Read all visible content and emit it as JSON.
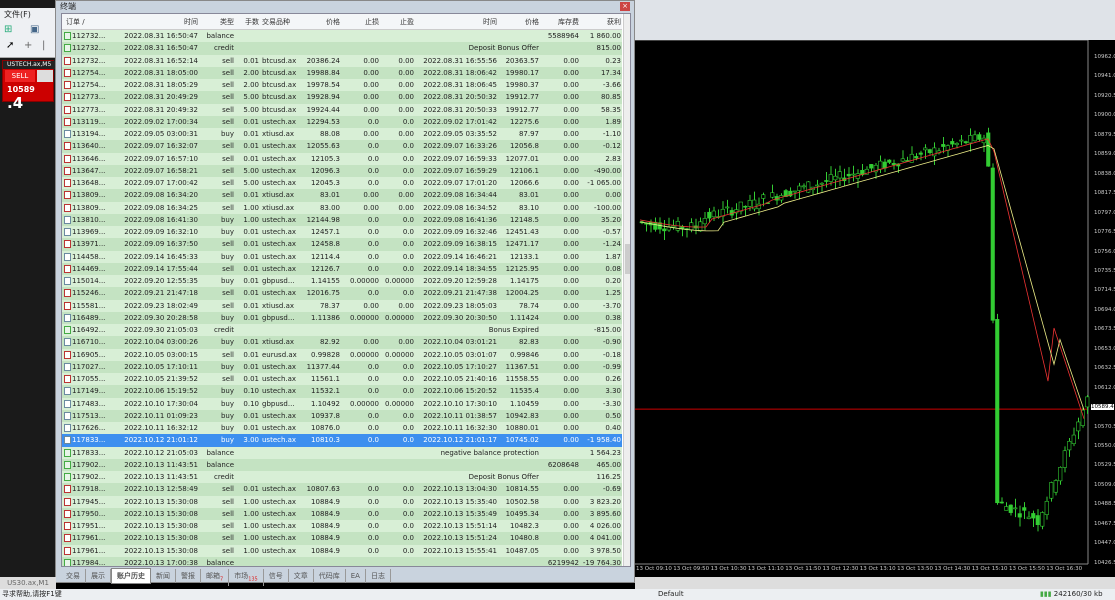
{
  "menu": {
    "file": "文件(F)"
  },
  "oneclick": {
    "symbol": "USTECH.ax,M5",
    "sell_label": "SELL",
    "price_main": "10589",
    "price_big": ".4",
    "color": "#cc0000"
  },
  "chart": {
    "price_labels": [
      "10962.0",
      "10941.0",
      "10920.5",
      "10900.0",
      "10879.5",
      "10859.0",
      "10838.0",
      "10817.5",
      "10797.0",
      "10776.5",
      "10756.0",
      "10735.5",
      "10714.5",
      "10694.0",
      "10673.5",
      "10653.0",
      "10632.5",
      "10612.0",
      "10589.4",
      "10570.5",
      "10550.0",
      "10529.5",
      "10509.0",
      "10488.5",
      "10467.5",
      "10447.0",
      "10426.5"
    ],
    "current_price": "10589.4",
    "time_labels": [
      "12 Oct 2022",
      "13 Oct 09:10",
      "13 Oct 09:50",
      "13 Oct 10:30",
      "13 Oct 11:10",
      "13 Oct 11:50",
      "13 Oct 12:30",
      "13 Oct 13:10",
      "13 Oct 13:50",
      "13 Oct 14:30",
      "13 Oct 15:10",
      "13 Oct 15:50",
      "13 Oct 16:30"
    ],
    "bull_color": "#33cc33",
    "current_line_color": "#cc0000"
  },
  "terminal": {
    "title": "终端",
    "headers": [
      "订单 /",
      "时间",
      "类型",
      "手数",
      "交易品种",
      "价格",
      "止损",
      "止盈",
      "时间",
      "价格",
      "库存费",
      "获利"
    ],
    "rows": [
      [
        "112732...",
        "2022.08.31 16:50:47",
        "balance",
        "",
        "",
        "",
        "",
        "",
        "",
        "",
        "5588964",
        "1 860.00"
      ],
      [
        "112732...",
        "2022.08.31 16:50:47",
        "credit",
        "",
        "",
        "",
        "",
        "",
        "",
        "Deposit Bonus Offer",
        "",
        "815.00"
      ],
      [
        "112732...",
        "2022.08.31 16:52:14",
        "sell",
        "0.01",
        "btcusd.ax",
        "20386.24",
        "0.00",
        "0.00",
        "2022.08.31 16:55:56",
        "20363.57",
        "0.00",
        "0.23"
      ],
      [
        "112754...",
        "2022.08.31 18:05:00",
        "sell",
        "2.00",
        "btcusd.ax",
        "19988.84",
        "0.00",
        "0.00",
        "2022.08.31 18:06:42",
        "19980.17",
        "0.00",
        "17.34"
      ],
      [
        "112754...",
        "2022.08.31 18:05:29",
        "sell",
        "2.00",
        "btcusd.ax",
        "19978.54",
        "0.00",
        "0.00",
        "2022.08.31 18:06:45",
        "19980.37",
        "0.00",
        "-3.66"
      ],
      [
        "112773...",
        "2022.08.31 20:49:29",
        "sell",
        "5.00",
        "btcusd.ax",
        "19928.94",
        "0.00",
        "0.00",
        "2022.08.31 20:50:32",
        "19912.77",
        "0.00",
        "80.85"
      ],
      [
        "112773...",
        "2022.08.31 20:49:32",
        "sell",
        "5.00",
        "btcusd.ax",
        "19924.44",
        "0.00",
        "0.00",
        "2022.08.31 20:50:33",
        "19912.77",
        "0.00",
        "58.35"
      ],
      [
        "113119...",
        "2022.09.02 17:00:34",
        "sell",
        "0.01",
        "ustech.ax",
        "12294.53",
        "0.0",
        "0.0",
        "2022.09.02 17:01:42",
        "12275.6",
        "0.00",
        "1.89"
      ],
      [
        "113194...",
        "2022.09.05 03:00:31",
        "buy",
        "0.01",
        "xtiusd.ax",
        "88.08",
        "0.00",
        "0.00",
        "2022.09.05 03:35:52",
        "87.97",
        "0.00",
        "-1.10"
      ],
      [
        "113640...",
        "2022.09.07 16:32:07",
        "sell",
        "0.01",
        "ustech.ax",
        "12055.63",
        "0.0",
        "0.0",
        "2022.09.07 16:33:26",
        "12056.8",
        "0.00",
        "-0.12"
      ],
      [
        "113646...",
        "2022.09.07 16:57:10",
        "sell",
        "0.01",
        "ustech.ax",
        "12105.3",
        "0.0",
        "0.0",
        "2022.09.07 16:59:33",
        "12077.01",
        "0.00",
        "2.83"
      ],
      [
        "113647...",
        "2022.09.07 16:58:21",
        "sell",
        "5.00",
        "ustech.ax",
        "12096.3",
        "0.0",
        "0.0",
        "2022.09.07 16:59:29",
        "12106.1",
        "0.00",
        "-490.00"
      ],
      [
        "113648...",
        "2022.09.07 17:00:42",
        "sell",
        "5.00",
        "ustech.ax",
        "12045.3",
        "0.0",
        "0.0",
        "2022.09.07 17:01:20",
        "12066.6",
        "0.00",
        "-1 065.00"
      ],
      [
        "113809...",
        "2022.09.08 16:34:20",
        "sell",
        "0.01",
        "xtiusd.ax",
        "83.01",
        "0.00",
        "0.00",
        "2022.09.08 16:34:44",
        "83.01",
        "0.00",
        "0.00"
      ],
      [
        "113809...",
        "2022.09.08 16:34:25",
        "sell",
        "1.00",
        "xtiusd.ax",
        "83.00",
        "0.00",
        "0.00",
        "2022.09.08 16:34:52",
        "83.10",
        "0.00",
        "-100.00"
      ],
      [
        "113810...",
        "2022.09.08 16:41:30",
        "buy",
        "1.00",
        "ustech.ax",
        "12144.98",
        "0.0",
        "0.0",
        "2022.09.08 16:41:36",
        "12148.5",
        "0.00",
        "35.20"
      ],
      [
        "113969...",
        "2022.09.09 16:32:10",
        "buy",
        "0.01",
        "ustech.ax",
        "12457.1",
        "0.0",
        "0.0",
        "2022.09.09 16:32:46",
        "12451.43",
        "0.00",
        "-0.57"
      ],
      [
        "113971...",
        "2022.09.09 16:37:50",
        "sell",
        "0.01",
        "ustech.ax",
        "12458.8",
        "0.0",
        "0.0",
        "2022.09.09 16:38:15",
        "12471.17",
        "0.00",
        "-1.24"
      ],
      [
        "114458...",
        "2022.09.14 16:45:33",
        "buy",
        "0.01",
        "ustech.ax",
        "12114.4",
        "0.0",
        "0.0",
        "2022.09.14 16:46:21",
        "12133.1",
        "0.00",
        "1.87"
      ],
      [
        "114469...",
        "2022.09.14 17:55:44",
        "sell",
        "0.01",
        "ustech.ax",
        "12126.7",
        "0.0",
        "0.0",
        "2022.09.14 18:34:55",
        "12125.95",
        "0.00",
        "0.08"
      ],
      [
        "115014...",
        "2022.09.20 12:55:35",
        "buy",
        "0.01",
        "gbpusd...",
        "1.14155",
        "0.00000",
        "0.00000",
        "2022.09.20 12:59:28",
        "1.14175",
        "0.00",
        "0.20"
      ],
      [
        "115246...",
        "2022.09.21 21:47:18",
        "sell",
        "0.01",
        "ustech.ax",
        "12016.75",
        "0.0",
        "0.0",
        "2022.09.21 21:47:38",
        "12004.25",
        "0.00",
        "1.25"
      ],
      [
        "115581...",
        "2022.09.23 18:02:49",
        "sell",
        "0.01",
        "xtiusd.ax",
        "78.37",
        "0.00",
        "0.00",
        "2022.09.23 18:05:03",
        "78.74",
        "0.00",
        "-3.70"
      ],
      [
        "116489...",
        "2022.09.30 20:28:58",
        "buy",
        "0.01",
        "gbpusd...",
        "1.11386",
        "0.00000",
        "0.00000",
        "2022.09.30 20:30:50",
        "1.11424",
        "0.00",
        "0.38"
      ],
      [
        "116492...",
        "2022.09.30 21:05:03",
        "credit",
        "",
        "",
        "",
        "",
        "",
        "",
        "Bonus Expired",
        "",
        "-815.00"
      ],
      [
        "116710...",
        "2022.10.04 03:00:26",
        "buy",
        "0.01",
        "xtiusd.ax",
        "82.92",
        "0.00",
        "0.00",
        "2022.10.04 03:01:21",
        "82.83",
        "0.00",
        "-0.90"
      ],
      [
        "116905...",
        "2022.10.05 03:00:15",
        "sell",
        "0.01",
        "eurusd.ax",
        "0.99828",
        "0.00000",
        "0.00000",
        "2022.10.05 03:01:07",
        "0.99846",
        "0.00",
        "-0.18"
      ],
      [
        "117027...",
        "2022.10.05 17:10:11",
        "buy",
        "0.01",
        "ustech.ax",
        "11377.44",
        "0.0",
        "0.0",
        "2022.10.05 17:10:27",
        "11367.51",
        "0.00",
        "-0.99"
      ],
      [
        "117055...",
        "2022.10.05 21:39:52",
        "sell",
        "0.01",
        "ustech.ax",
        "11561.1",
        "0.0",
        "0.0",
        "2022.10.05 21:40:16",
        "11558.55",
        "0.00",
        "0.26"
      ],
      [
        "117149...",
        "2022.10.06 15:19:52",
        "buy",
        "0.10",
        "ustech.ax",
        "11532.1",
        "0.0",
        "0.0",
        "2022.10.06 15:20:52",
        "11535.4",
        "0.00",
        "3.30"
      ],
      [
        "117483...",
        "2022.10.10 17:30:04",
        "buy",
        "0.10",
        "gbpusd...",
        "1.10492",
        "0.00000",
        "0.00000",
        "2022.10.10 17:30:10",
        "1.10459",
        "0.00",
        "-3.30"
      ],
      [
        "117513...",
        "2022.10.11 01:09:23",
        "buy",
        "0.01",
        "ustech.ax",
        "10937.8",
        "0.0",
        "0.0",
        "2022.10.11 01:38:57",
        "10942.83",
        "0.00",
        "0.50"
      ],
      [
        "117626...",
        "2022.10.11 16:32:12",
        "buy",
        "0.01",
        "ustech.ax",
        "10876.0",
        "0.0",
        "0.0",
        "2022.10.11 16:32:30",
        "10880.01",
        "0.00",
        "0.40"
      ],
      [
        "117833...",
        "2022.10.12 21:01:12",
        "buy",
        "3.00",
        "ustech.ax",
        "10810.3",
        "0.0",
        "0.0",
        "2022.10.12 21:01:17",
        "10745.02",
        "0.00",
        "-1 958.40"
      ],
      [
        "117833...",
        "2022.10.12 21:05:03",
        "balance",
        "",
        "",
        "",
        "",
        "",
        "",
        "negative balance protection",
        "",
        "1 564.23"
      ],
      [
        "117902...",
        "2022.10.13 11:43:51",
        "balance",
        "",
        "",
        "",
        "",
        "",
        "",
        "",
        "6208648",
        "465.00"
      ],
      [
        "117902...",
        "2022.10.13 11:43:51",
        "credit",
        "",
        "",
        "",
        "",
        "",
        "",
        "Deposit Bonus Offer",
        "",
        "116.25"
      ],
      [
        "117918...",
        "2022.10.13 12:58:49",
        "sell",
        "0.01",
        "ustech.ax",
        "10807.63",
        "0.0",
        "0.0",
        "2022.10.13 13:04:30",
        "10814.55",
        "0.00",
        "-0.69"
      ],
      [
        "117945...",
        "2022.10.13 15:30:08",
        "sell",
        "1.00",
        "ustech.ax",
        "10884.9",
        "0.0",
        "0.0",
        "2022.10.13 15:35:40",
        "10502.58",
        "0.00",
        "3 823.20"
      ],
      [
        "117950...",
        "2022.10.13 15:30:08",
        "sell",
        "1.00",
        "ustech.ax",
        "10884.9",
        "0.0",
        "0.0",
        "2022.10.13 15:35:49",
        "10495.34",
        "0.00",
        "3 895.60"
      ],
      [
        "117951...",
        "2022.10.13 15:30:08",
        "sell",
        "1.00",
        "ustech.ax",
        "10884.9",
        "0.0",
        "0.0",
        "2022.10.13 15:51:14",
        "10482.3",
        "0.00",
        "4 026.00"
      ],
      [
        "117961...",
        "2022.10.13 15:30:08",
        "sell",
        "1.00",
        "ustech.ax",
        "10884.9",
        "0.0",
        "0.0",
        "2022.10.13 15:51:24",
        "10480.8",
        "0.00",
        "4 041.00"
      ],
      [
        "117961...",
        "2022.10.13 15:30:08",
        "sell",
        "1.00",
        "ustech.ax",
        "10884.9",
        "0.0",
        "0.0",
        "2022.10.13 15:55:41",
        "10487.05",
        "0.00",
        "3 978.50"
      ],
      [
        "117984...",
        "2022.10.13 17:00:38",
        "balance",
        "",
        "",
        "",
        "",
        "",
        "",
        "",
        "6219942",
        "-19 764.30"
      ]
    ],
    "selected_row": 33,
    "tabs": [
      {
        "label": "交易"
      },
      {
        "label": "展示"
      },
      {
        "label": "账户历史",
        "active": true
      },
      {
        "label": "新闻"
      },
      {
        "label": "警报"
      },
      {
        "label": "邮箱",
        "badge": "7"
      },
      {
        "label": "市场",
        "badge": "135"
      },
      {
        "label": "信号"
      },
      {
        "label": "文章"
      },
      {
        "label": "代码库"
      },
      {
        "label": "EA"
      },
      {
        "label": "日志"
      }
    ]
  },
  "symbol_tab": "US30.ax,M1",
  "status": {
    "help": "寻求帮助,请按F1键",
    "profile": "Default",
    "memory": "242160/30 kb"
  }
}
